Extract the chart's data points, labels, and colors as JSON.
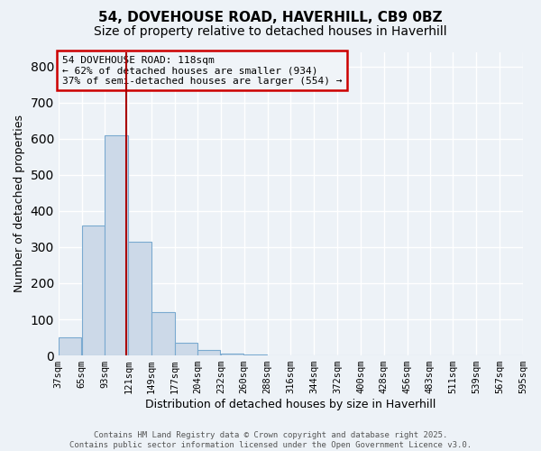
{
  "title_line1": "54, DOVEHOUSE ROAD, HAVERHILL, CB9 0BZ",
  "title_line2": "Size of property relative to detached houses in Haverhill",
  "xlabel": "Distribution of detached houses by size in Haverhill",
  "ylabel": "Number of detached properties",
  "bins": [
    37,
    65,
    93,
    121,
    149,
    177,
    204,
    232,
    260,
    288,
    316,
    344,
    372,
    400,
    428,
    456,
    483,
    511,
    539,
    567,
    595
  ],
  "counts": [
    50,
    360,
    610,
    315,
    120,
    35,
    15,
    5,
    3,
    0,
    0,
    0,
    0,
    0,
    0,
    0,
    0,
    0,
    0,
    0
  ],
  "bar_color": "#ccd9e8",
  "bar_edge_color": "#7aaad0",
  "property_size": 118,
  "property_line_color": "#aa0000",
  "ylim": [
    0,
    840
  ],
  "yticks": [
    0,
    100,
    200,
    300,
    400,
    500,
    600,
    700,
    800
  ],
  "annotation_text": "54 DOVEHOUSE ROAD: 118sqm\n← 62% of detached houses are smaller (934)\n37% of semi-detached houses are larger (554) →",
  "annotation_box_edgecolor": "#cc0000",
  "annotation_bg_color": "#f0f4f8",
  "footer_line1": "Contains HM Land Registry data © Crown copyright and database right 2025.",
  "footer_line2": "Contains public sector information licensed under the Open Government Licence v3.0.",
  "background_color": "#edf2f7",
  "grid_color": "#ffffff",
  "tick_label_fontsize": 7.5,
  "axis_label_fontsize": 9,
  "title_fontsize1": 11,
  "title_fontsize2": 10,
  "ylabel_fontsize": 9
}
